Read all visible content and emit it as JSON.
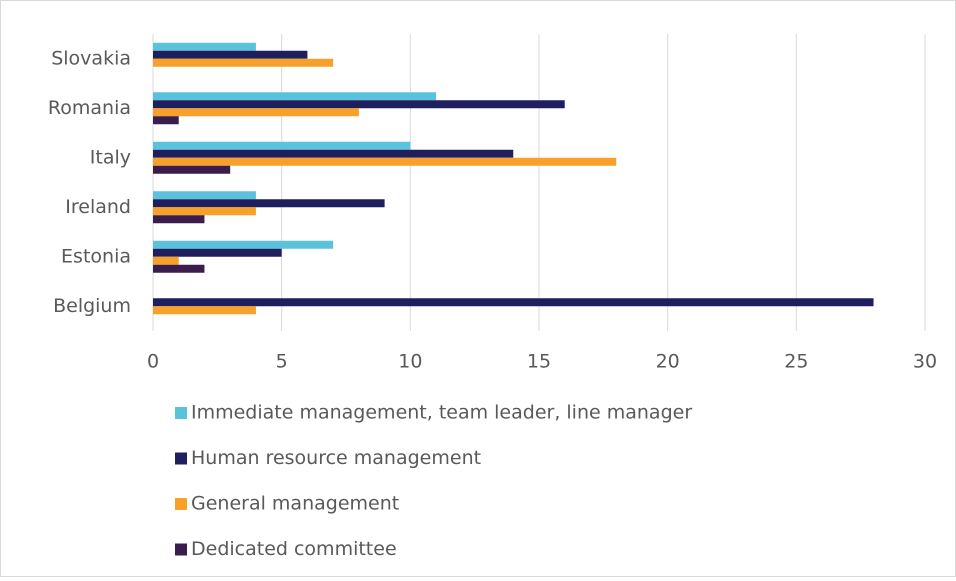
{
  "chart_data": {
    "type": "hbar",
    "categories": [
      "Slovakia",
      "Romania",
      "Italy",
      "Ireland",
      "Estonia",
      "Belgium"
    ],
    "series": [
      {
        "name": "Immediate management, team leader, line manager",
        "color": "#5bc2dc",
        "values": [
          4,
          11,
          10,
          4,
          7,
          0
        ]
      },
      {
        "name": "Human resource management",
        "color": "#201f5e",
        "values": [
          6,
          16,
          14,
          9,
          5,
          28
        ]
      },
      {
        "name": "General management",
        "color": "#f7a12a",
        "values": [
          7,
          8,
          18,
          4,
          1,
          4
        ]
      },
      {
        "name": "Dedicated committee",
        "color": "#3b1d4d",
        "values": [
          0,
          1,
          3,
          2,
          2,
          0
        ]
      }
    ],
    "xlim": [
      0,
      30
    ],
    "xticks": [
      0,
      5,
      10,
      15,
      20,
      25,
      30
    ],
    "grid": true
  }
}
